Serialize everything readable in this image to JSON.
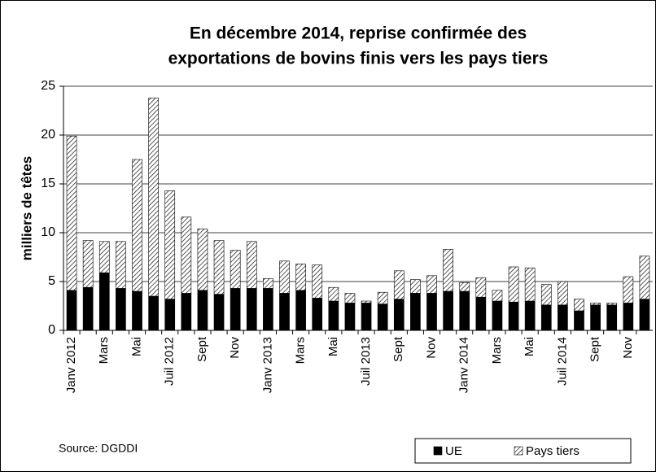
{
  "chart_data": {
    "type": "stacked-bar",
    "title": [
      "En décembre 2014, reprise confirmée des",
      "exportations de bovins finis vers les pays tiers"
    ],
    "y_label": "milliers de têtes",
    "source": "Source: DGDDI",
    "categories": [
      "Janv 2012",
      null,
      "Mars",
      null,
      "Mai",
      null,
      "Juil 2012",
      null,
      "Sept",
      null,
      "Nov",
      null,
      "Janv 2013",
      null,
      "Mars",
      null,
      "Mai",
      null,
      "Juil 2013",
      null,
      "Sept",
      null,
      "Nov",
      null,
      "Janv 2014",
      null,
      "Mars",
      null,
      "Mai",
      null,
      "Juil 2014",
      null,
      "Sept",
      null,
      "Nov",
      null
    ],
    "series": [
      {
        "name": "UE",
        "color": "#000000",
        "values": [
          4.1,
          4.4,
          5.9,
          4.3,
          4.0,
          3.5,
          3.2,
          3.8,
          4.1,
          3.7,
          4.3,
          4.3,
          4.3,
          3.8,
          4.1,
          3.3,
          3.0,
          2.8,
          2.8,
          2.7,
          3.2,
          3.8,
          3.8,
          4.0,
          4.0,
          3.4,
          3.0,
          2.9,
          3.0,
          2.6,
          2.6,
          2.0,
          2.6,
          2.6,
          2.8,
          3.2
        ]
      },
      {
        "name": "Pays tiers",
        "color": "#ffffff",
        "pattern": "hatch",
        "values": [
          15.8,
          4.8,
          3.2,
          4.8,
          13.5,
          20.3,
          11.1,
          7.8,
          6.3,
          5.5,
          3.9,
          4.8,
          1.0,
          3.3,
          2.7,
          3.4,
          1.4,
          1.0,
          0.2,
          1.2,
          2.9,
          1.4,
          1.8,
          4.3,
          0.9,
          2.0,
          1.1,
          3.6,
          3.4,
          2.1,
          2.4,
          1.2,
          0.2,
          0.2,
          2.7,
          4.4
        ]
      }
    ],
    "ylim": [
      0,
      25
    ],
    "yticks": [
      0,
      5,
      10,
      15,
      20,
      25
    ],
    "grid": true,
    "legend": "bottom-right"
  }
}
